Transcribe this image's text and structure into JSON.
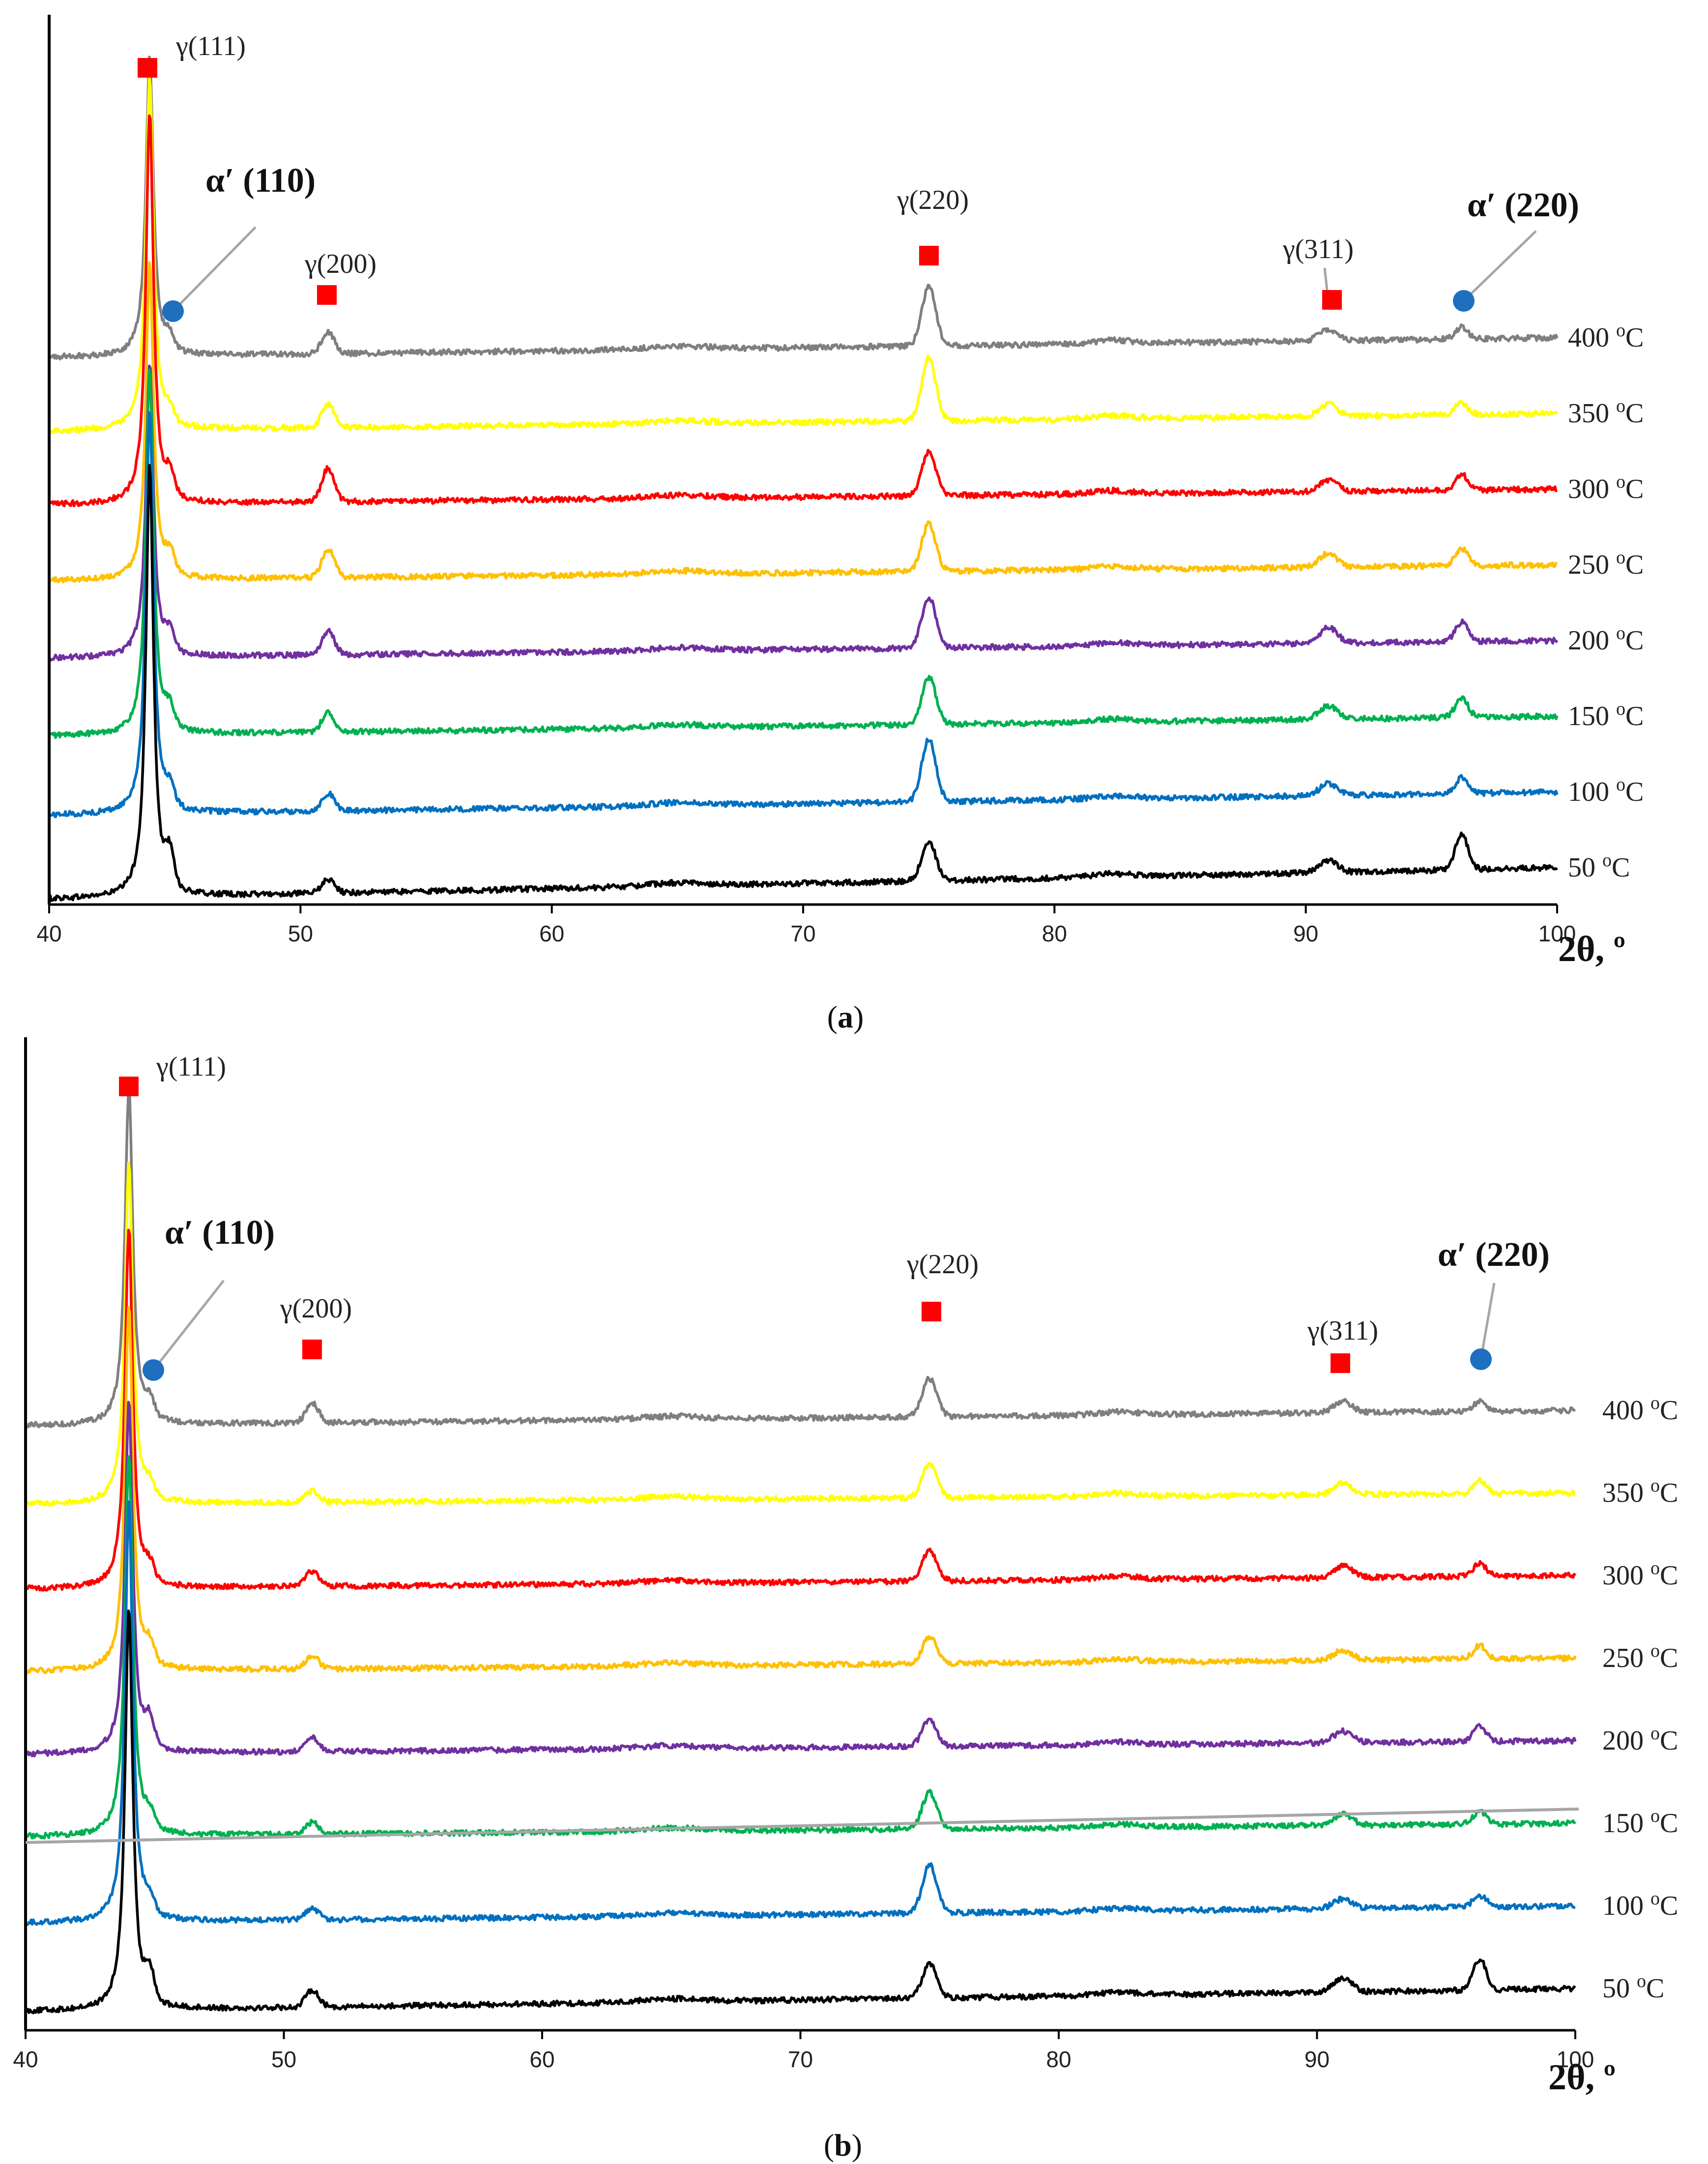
{
  "chart_data": [
    {
      "type": "line",
      "panel_label": "(a)",
      "panel_letter": "a",
      "xlabel": "2θ, º",
      "xlim": [
        40,
        100
      ],
      "x_ticks": [
        40,
        50,
        60,
        70,
        80,
        90,
        100
      ],
      "ylabel": "",
      "y_axis_ticks": "none",
      "series": [
        {
          "name": "50 oC",
          "label_num": "50 ",
          "label_sup": "o",
          "label_unit": "C",
          "color": "#000000",
          "offset": 0,
          "tilt": 0.8,
          "main_peak": 11.0,
          "alpha110": 0.9,
          "g200": 0.35,
          "g220": 1.0,
          "g311": 0.3,
          "alpha220": 0.9
        },
        {
          "name": "100 oC",
          "label_num": "100 ",
          "label_sup": "o",
          "label_unit": "C",
          "color": "#0070C0",
          "offset": 1,
          "tilt": 0.6,
          "main_peak": 10.3,
          "alpha110": 0.45,
          "g200": 0.45,
          "g220": 1.6,
          "g311": 0.3,
          "alpha220": 0.4
        },
        {
          "name": "150 oC",
          "label_num": "150 ",
          "label_sup": "o",
          "label_unit": "C",
          "color": "#00B050",
          "offset": 2,
          "tilt": 0.5,
          "main_peak": 9.3,
          "alpha110": 0.5,
          "g200": 0.5,
          "g220": 1.2,
          "g311": 0.35,
          "alpha220": 0.5
        },
        {
          "name": "200 oC",
          "label_num": "200 ",
          "label_sup": "o",
          "label_unit": "C",
          "color": "#7030A0",
          "offset": 3,
          "tilt": 0.45,
          "main_peak": 7.5,
          "alpha110": 0.5,
          "g200": 0.6,
          "g220": 1.3,
          "g311": 0.4,
          "alpha220": 0.5
        },
        {
          "name": "250 oC",
          "label_num": "250 ",
          "label_sup": "o",
          "label_unit": "C",
          "color": "#FFC000",
          "offset": 4,
          "tilt": 0.4,
          "main_peak": 8.1,
          "alpha110": 0.5,
          "g200": 0.7,
          "g220": 1.2,
          "g311": 0.35,
          "alpha220": 0.45
        },
        {
          "name": "300 oC",
          "label_num": "300 ",
          "label_sup": "o",
          "label_unit": "C",
          "color": "#FF0000",
          "offset": 5,
          "tilt": 0.4,
          "main_peak": 10.0,
          "alpha110": 0.55,
          "g200": 0.85,
          "g220": 1.1,
          "g311": 0.3,
          "alpha220": 0.4
        },
        {
          "name": "350 oC",
          "label_num": "350 ",
          "label_sup": "o",
          "label_unit": "C",
          "color": "#FFFF00",
          "offset": 6,
          "tilt": 0.45,
          "main_peak": 9.0,
          "alpha110": 0.3,
          "g200": 0.6,
          "g220": 1.6,
          "g311": 0.3,
          "alpha220": 0.3
        },
        {
          "name": "400 oC",
          "label_num": "400 ",
          "label_sup": "o",
          "label_unit": "C",
          "color": "#7F7F7F",
          "offset": 7,
          "tilt": 0.5,
          "main_peak": 7.6,
          "alpha110": 0.35,
          "g200": 0.55,
          "g220": 1.5,
          "g311": 0.3,
          "alpha220": 0.3
        }
      ],
      "peaks": {
        "gamma111": {
          "label": "γ(111)",
          "x": 44.0
        },
        "alpha110": {
          "label": "α′ (110)",
          "x": 44.8
        },
        "gamma200": {
          "label": "γ(200)",
          "x": 51.1
        },
        "gamma220": {
          "label": "γ(220)",
          "x": 75.0
        },
        "gamma311": {
          "label": "γ(311)",
          "x": 90.9
        },
        "alpha220": {
          "label": "α′ (220)",
          "x": 96.2
        }
      }
    },
    {
      "type": "line",
      "panel_label": "(b)",
      "panel_letter": "b",
      "xlabel": "2θ, º",
      "xlim": [
        40,
        100
      ],
      "x_ticks": [
        40,
        50,
        60,
        70,
        80,
        90,
        100
      ],
      "ylabel": "",
      "y_axis_ticks": "none",
      "series": [
        {
          "name": "50 oC",
          "label_num": "50 ",
          "label_sup": "o",
          "label_unit": "C",
          "color": "#000000",
          "offset": 0,
          "tilt": 0.6,
          "main_peak": 10.5,
          "alpha110": 0.8,
          "g200": 0.45,
          "g220": 0.9,
          "g311": 0.35,
          "alpha220": 0.8
        },
        {
          "name": "100 oC",
          "label_num": "100 ",
          "label_sup": "o",
          "label_unit": "C",
          "color": "#0070C0",
          "offset": 1,
          "tilt": 0.45,
          "main_peak": 11.0,
          "alpha110": 0.4,
          "g200": 0.3,
          "g220": 1.25,
          "g311": 0.25,
          "alpha220": 0.3
        },
        {
          "name": "150 oC",
          "label_num": "150 ",
          "label_sup": "o",
          "label_unit": "C",
          "color": "#00B050",
          "offset": 2,
          "tilt": 0.35,
          "main_peak": 10.0,
          "alpha110": 0.4,
          "g200": 0.3,
          "g220": 0.95,
          "g311": 0.3,
          "alpha220": 0.35
        },
        {
          "name": "200 oC",
          "label_num": "200 ",
          "label_sup": "o",
          "label_unit": "C",
          "color": "#7030A0",
          "offset": 3,
          "tilt": 0.35,
          "main_peak": 9.2,
          "alpha110": 0.7,
          "g200": 0.35,
          "g220": 0.7,
          "g311": 0.3,
          "alpha220": 0.4
        },
        {
          "name": "250 oC",
          "label_num": "250 ",
          "label_sup": "o",
          "label_unit": "C",
          "color": "#FFC000",
          "offset": 4,
          "tilt": 0.35,
          "main_peak": 9.6,
          "alpha110": 0.5,
          "g200": 0.35,
          "g220": 0.7,
          "g311": 0.25,
          "alpha220": 0.35
        },
        {
          "name": "300 oC",
          "label_num": "300 ",
          "label_sup": "o",
          "label_unit": "C",
          "color": "#FF0000",
          "offset": 5,
          "tilt": 0.35,
          "main_peak": 9.4,
          "alpha110": 0.4,
          "g200": 0.4,
          "g220": 0.8,
          "g311": 0.3,
          "alpha220": 0.35
        },
        {
          "name": "350 oC",
          "label_num": "350 ",
          "label_sup": "o",
          "label_unit": "C",
          "color": "#FFFF00",
          "offset": 6,
          "tilt": 0.3,
          "main_peak": 8.9,
          "alpha110": 0.35,
          "g200": 0.3,
          "g220": 0.9,
          "g311": 0.3,
          "alpha220": 0.35
        },
        {
          "name": "400 oC",
          "label_num": "400 ",
          "label_sup": "o",
          "label_unit": "C",
          "color": "#7F7F7F",
          "offset": 7,
          "tilt": 0.4,
          "main_peak": 8.8,
          "alpha110": 0.45,
          "g200": 0.5,
          "g220": 1.0,
          "g311": 0.3,
          "alpha220": 0.25
        }
      ],
      "peaks": {
        "gamma111": {
          "label": "γ(111)",
          "x": 44.0
        },
        "alpha110": {
          "label": "α′ (110)",
          "x": 44.8
        },
        "gamma200": {
          "label": "γ(200)",
          "x": 51.1
        },
        "gamma220": {
          "label": "γ(220)",
          "x": 75.0
        },
        "gamma311": {
          "label": "γ(311)",
          "x": 91.0
        },
        "alpha220": {
          "label": "α′ (220)",
          "x": 96.3
        }
      },
      "annotations": {
        "grey_reference_line": true
      }
    }
  ],
  "colors": {
    "gamma_marker": "#FF0000",
    "alpha_marker": "#1F6FBF",
    "leader_line": "#A6A6A6",
    "axis": "#000000"
  }
}
